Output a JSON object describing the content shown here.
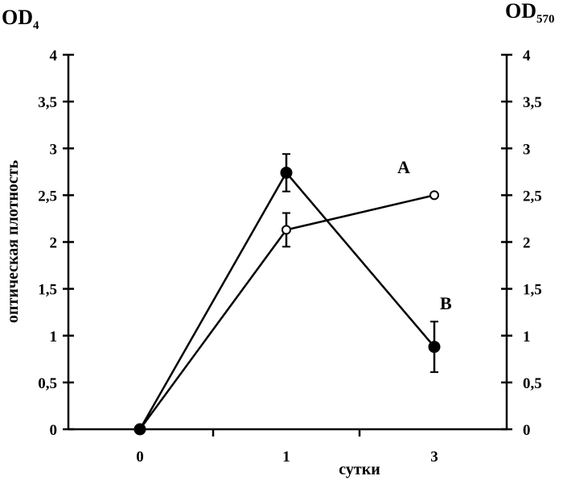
{
  "chart_data": {
    "type": "line",
    "left_axis_label": "OD",
    "left_axis_sub": "4",
    "right_axis_label": "OD",
    "right_axis_sub": "570",
    "ylabel": "оптическая плотность",
    "xlabel": "сутки",
    "x_categories": [
      "0",
      "1",
      "3"
    ],
    "x_positions": [
      0,
      1,
      2
    ],
    "ylim": [
      0,
      4
    ],
    "yticks": [
      0,
      0.5,
      1,
      1.5,
      2,
      2.5,
      3,
      3.5,
      4
    ],
    "ytick_labels": [
      "0",
      "0,5",
      "1",
      "1,5",
      "2",
      "2,5",
      "3",
      "3,5",
      "4"
    ],
    "grid": false,
    "series": [
      {
        "name": "A",
        "marker": "open-circle",
        "values": [
          0,
          2.13,
          2.5
        ],
        "errors": [
          0,
          0.18,
          0.02
        ]
      },
      {
        "name": "B",
        "marker": "filled-circle",
        "values": [
          0,
          2.74,
          0.88
        ],
        "errors": [
          0,
          0.2,
          0.27
        ]
      }
    ]
  }
}
